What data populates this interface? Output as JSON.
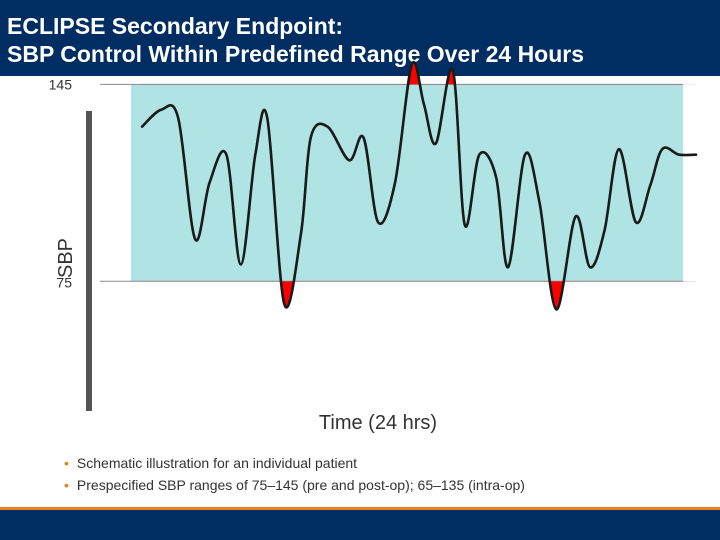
{
  "slide": {
    "title_line1": "ECLIPSE Secondary Endpoint:",
    "title_line2": "SBP Control Within Predefined Range Over 24 Hours"
  },
  "colors": {
    "header_bg": "#002d62",
    "band_fill": "#b0e3e3",
    "excursion_fill": "#ff0000",
    "curve": "#1a1a1a",
    "accent": "#e8801f"
  },
  "chart_data": {
    "type": "line",
    "title": "",
    "xlabel": "Time (24 hrs)",
    "ylabel": "SBP",
    "yticks": [
      75,
      145
    ],
    "ylim": [
      15,
      175
    ],
    "xlim": [
      0,
      24
    ],
    "target_range": {
      "low": 75,
      "high": 145
    },
    "series": [
      {
        "name": "SBP (schematic)",
        "x": [
          1.0,
          1.8,
          2.5,
          3.2,
          3.8,
          4.5,
          5.1,
          5.7,
          6.2,
          6.9,
          7.6,
          8.0,
          8.7,
          9.6,
          10.2,
          10.8,
          11.5,
          12.2,
          12.7,
          13.2,
          13.9,
          14.4,
          15.0,
          15.7,
          16.2,
          16.9,
          17.5,
          18.2,
          19.0,
          19.6,
          20.2,
          20.8,
          21.5,
          22.1,
          22.6,
          23.3,
          24.0
        ],
        "y": [
          130,
          136,
          133,
          90,
          110,
          120,
          81,
          120,
          133,
          67,
          92,
          126,
          130,
          118,
          126,
          96,
          110,
          152,
          138,
          124,
          150,
          95,
          120,
          112,
          80,
          120,
          103,
          65,
          98,
          80,
          93,
          122,
          96,
          109,
          122,
          120,
          120
        ]
      }
    ]
  }
}
